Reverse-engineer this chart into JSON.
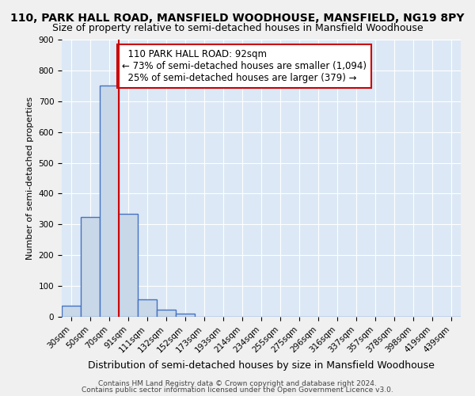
{
  "title1": "110, PARK HALL ROAD, MANSFIELD WOODHOUSE, MANSFIELD, NG19 8PY",
  "title2": "Size of property relative to semi-detached houses in Mansfield Woodhouse",
  "xlabel": "Distribution of semi-detached houses by size in Mansfield Woodhouse",
  "ylabel": "Number of semi-detached properties",
  "footer1": "Contains HM Land Registry data © Crown copyright and database right 2024.",
  "footer2": "Contains public sector information licensed under the Open Government Licence v3.0.",
  "bin_labels": [
    "30sqm",
    "50sqm",
    "70sqm",
    "91sqm",
    "111sqm",
    "132sqm",
    "152sqm",
    "173sqm",
    "193sqm",
    "214sqm",
    "234sqm",
    "255sqm",
    "275sqm",
    "296sqm",
    "316sqm",
    "337sqm",
    "357sqm",
    "378sqm",
    "398sqm",
    "419sqm",
    "439sqm"
  ],
  "bar_values": [
    35,
    325,
    750,
    335,
    57,
    22,
    11,
    0,
    0,
    0,
    0,
    0,
    0,
    0,
    0,
    0,
    0,
    0,
    0,
    0,
    0
  ],
  "ylim": [
    0,
    900
  ],
  "yticks": [
    0,
    100,
    200,
    300,
    400,
    500,
    600,
    700,
    800,
    900
  ],
  "property_label": "110 PARK HALL ROAD: 92sqm",
  "pct_smaller": 73,
  "n_smaller": 1094,
  "pct_larger": 25,
  "n_larger": 379,
  "bar_color": "#c8d8e8",
  "bar_edge_color": "#4472c4",
  "bar_linewidth": 1.0,
  "vline_color": "#cc0000",
  "vline_x_idx": 3,
  "plot_bg_color": "#dce8f5",
  "grid_color": "#ffffff",
  "annotation_box_edge": "#cc0000",
  "annotation_fontsize": 8.5,
  "title1_fontsize": 10,
  "title2_fontsize": 9,
  "xlabel_fontsize": 9,
  "ylabel_fontsize": 8,
  "tick_fontsize": 7.5,
  "footer_fontsize": 6.5
}
